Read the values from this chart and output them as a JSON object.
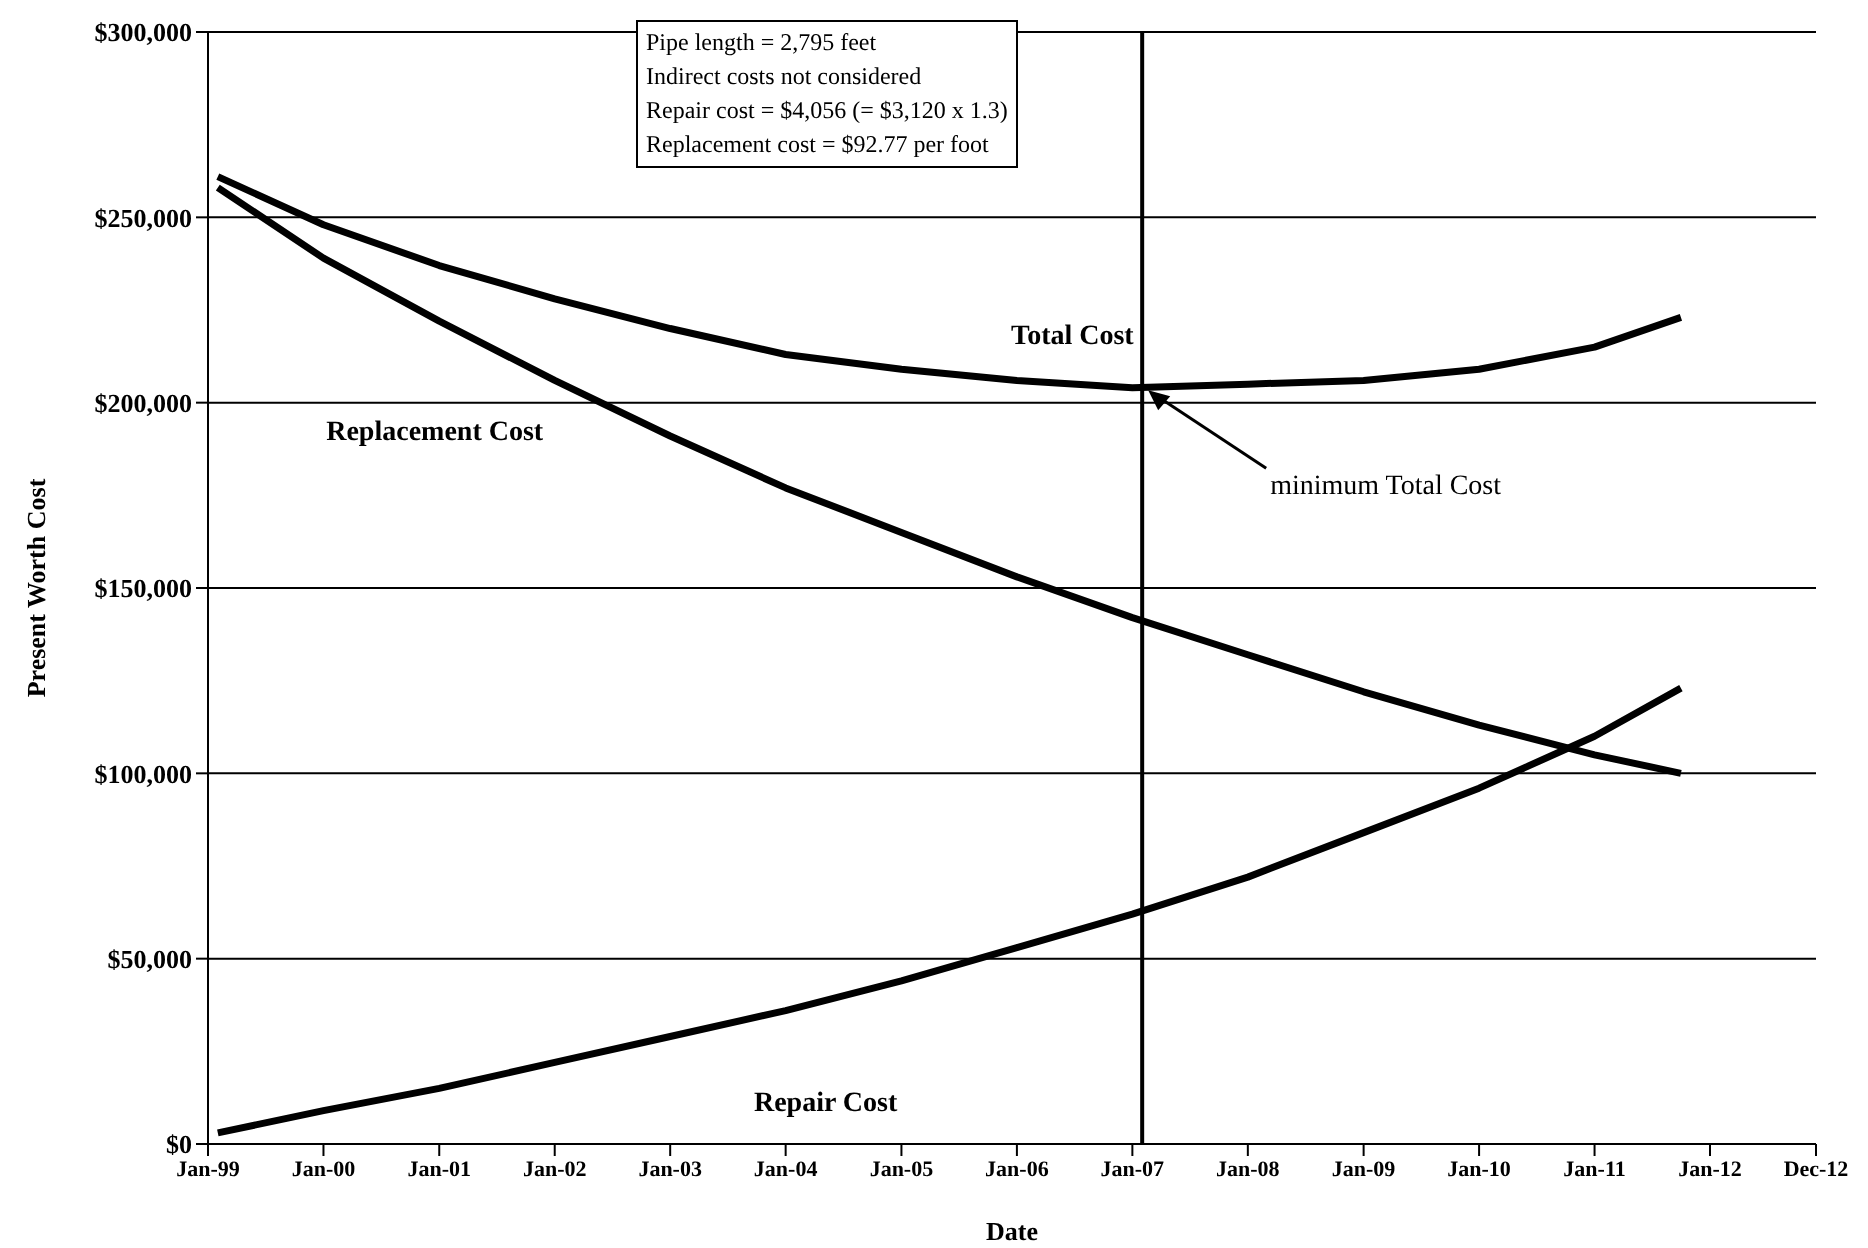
{
  "chart_data": {
    "type": "line",
    "xlabel": "Date",
    "ylabel": "Present Worth Cost",
    "x": [
      "1999-02",
      "2000-01",
      "2001-01",
      "2002-01",
      "2003-01",
      "2004-01",
      "2005-01",
      "2006-01",
      "2007-01",
      "2008-01",
      "2009-01",
      "2010-01",
      "2011-01",
      "2011-10"
    ],
    "series": [
      {
        "name": "Total Cost",
        "color": "#000000",
        "values": [
          261000,
          248000,
          237000,
          228000,
          220000,
          213000,
          209000,
          206000,
          204000,
          205000,
          206000,
          209000,
          215000,
          223000
        ]
      },
      {
        "name": "Replacement Cost",
        "color": "#000000",
        "values": [
          258000,
          239000,
          222000,
          206000,
          191000,
          177000,
          165000,
          153000,
          142000,
          132000,
          122000,
          113000,
          105000,
          100000
        ]
      },
      {
        "name": "Repair Cost",
        "color": "#000000",
        "values": [
          3000,
          9000,
          15000,
          22000,
          29000,
          36000,
          44000,
          53000,
          62000,
          72000,
          84000,
          96000,
          110000,
          123000
        ]
      }
    ],
    "xlim": [
      "1999-01",
      "2012-12"
    ],
    "xticks": [
      {
        "value": "1999-01",
        "label": "Jan-99"
      },
      {
        "value": "2000-01",
        "label": "Jan-00"
      },
      {
        "value": "2001-01",
        "label": "Jan-01"
      },
      {
        "value": "2002-01",
        "label": "Jan-02"
      },
      {
        "value": "2003-01",
        "label": "Jan-03"
      },
      {
        "value": "2004-01",
        "label": "Jan-04"
      },
      {
        "value": "2005-01",
        "label": "Jan-05"
      },
      {
        "value": "2006-01",
        "label": "Jan-06"
      },
      {
        "value": "2007-01",
        "label": "Jan-07"
      },
      {
        "value": "2008-01",
        "label": "Jan-08"
      },
      {
        "value": "2009-01",
        "label": "Jan-09"
      },
      {
        "value": "2010-01",
        "label": "Jan-10"
      },
      {
        "value": "2011-01",
        "label": "Jan-11"
      },
      {
        "value": "2012-01",
        "label": "Jan-12"
      },
      {
        "value": "2012-12",
        "label": "Dec-12"
      }
    ],
    "ylim": [
      0,
      300000
    ],
    "yticks": [
      {
        "value": 0,
        "label": "$0"
      },
      {
        "value": 50000,
        "label": "$50,000"
      },
      {
        "value": 100000,
        "label": "$100,000"
      },
      {
        "value": 150000,
        "label": "$150,000"
      },
      {
        "value": 200000,
        "label": "$200,000"
      },
      {
        "value": 250000,
        "label": "$250,000"
      },
      {
        "value": 300000,
        "label": "$300,000"
      }
    ],
    "grid": "y",
    "legend": false,
    "marker": "none",
    "line_style": "solid",
    "ref_lines": [
      {
        "axis": "x",
        "value": "2007-02",
        "color": "#000000"
      }
    ],
    "annotations": [
      "Pipe length = 2,795 feet",
      "Indirect costs not considered",
      "Repair cost = $4,056 (= $3,120 x 1.3)",
      "Replacement cost = $92.77 per foot",
      {
        "text": "minimum Total Cost",
        "x": "2007-02",
        "y": 205000
      }
    ]
  }
}
